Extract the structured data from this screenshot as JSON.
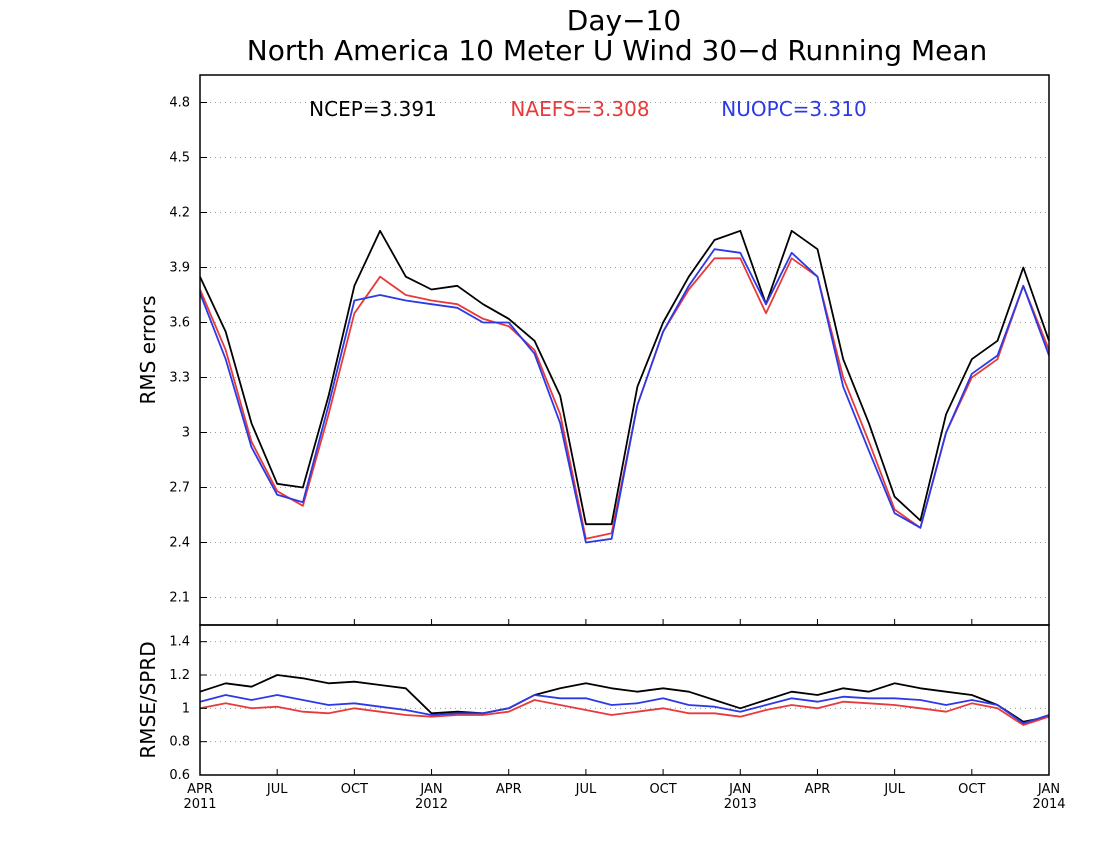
{
  "chart_data": [
    {
      "type": "line",
      "title": "Day−10",
      "subtitle": "North America 10 Meter U Wind 30−d Running Mean",
      "ylabel": "RMS errors",
      "xlabel": "",
      "ylim": [
        1.95,
        4.95
      ],
      "yticks": [
        "2.1",
        "2.4",
        "2.7",
        "3",
        "3.3",
        "3.6",
        "3.9",
        "4.2",
        "4.5",
        "4.8"
      ],
      "ytick_values": [
        2.1,
        2.4,
        2.7,
        3.0,
        3.3,
        3.6,
        3.9,
        4.2,
        4.5,
        4.8
      ],
      "grid": true,
      "legend_placement": "top",
      "x": [
        "2011-04",
        "2011-05",
        "2011-06",
        "2011-07",
        "2011-08",
        "2011-09",
        "2011-10",
        "2011-11",
        "2011-12",
        "2012-01",
        "2012-02",
        "2012-03",
        "2012-04",
        "2012-05",
        "2012-06",
        "2012-07",
        "2012-08",
        "2012-09",
        "2012-10",
        "2012-11",
        "2012-12",
        "2013-01",
        "2013-02",
        "2013-03",
        "2013-04",
        "2013-05",
        "2013-06",
        "2013-07",
        "2013-08",
        "2013-09",
        "2013-10",
        "2013-11",
        "2013-12",
        "2014-01"
      ],
      "series": [
        {
          "name": "NCEP=3.391",
          "color": "#000000",
          "values": [
            3.85,
            3.55,
            3.05,
            2.72,
            2.7,
            3.2,
            3.8,
            4.1,
            3.85,
            3.78,
            3.8,
            3.7,
            3.62,
            3.5,
            3.2,
            2.5,
            2.5,
            3.25,
            3.6,
            3.85,
            4.05,
            4.1,
            3.7,
            4.1,
            4.0,
            3.4,
            3.05,
            2.65,
            2.52,
            3.1,
            3.4,
            3.5,
            3.9,
            3.5
          ]
        },
        {
          "name": "NAEFS=3.308",
          "color": "#e83a3a",
          "values": [
            3.78,
            3.45,
            2.95,
            2.68,
            2.6,
            3.1,
            3.65,
            3.85,
            3.75,
            3.72,
            3.7,
            3.62,
            3.58,
            3.45,
            3.1,
            2.42,
            2.45,
            3.15,
            3.55,
            3.78,
            3.95,
            3.95,
            3.65,
            3.95,
            3.85,
            3.3,
            2.95,
            2.58,
            2.48,
            3.0,
            3.3,
            3.4,
            3.8,
            3.45
          ]
        },
        {
          "name": "NUOPC=3.310",
          "color": "#2b3ae6",
          "values": [
            3.76,
            3.4,
            2.92,
            2.66,
            2.62,
            3.15,
            3.72,
            3.75,
            3.72,
            3.7,
            3.68,
            3.6,
            3.6,
            3.43,
            3.05,
            2.4,
            2.42,
            3.15,
            3.55,
            3.8,
            4.0,
            3.98,
            3.7,
            3.98,
            3.85,
            3.25,
            2.9,
            2.56,
            2.48,
            3.0,
            3.32,
            3.42,
            3.8,
            3.42
          ]
        }
      ]
    },
    {
      "type": "line",
      "ylabel": "RMSE/SPRD",
      "xlabel": "",
      "ylim": [
        0.6,
        1.5
      ],
      "yticks": [
        "0.6",
        "0.8",
        "1",
        "1.2",
        "1.4"
      ],
      "ytick_values": [
        0.6,
        0.8,
        1.0,
        1.2,
        1.4
      ],
      "grid": true,
      "x": [
        "2011-04",
        "2011-05",
        "2011-06",
        "2011-07",
        "2011-08",
        "2011-09",
        "2011-10",
        "2011-11",
        "2011-12",
        "2012-01",
        "2012-02",
        "2012-03",
        "2012-04",
        "2012-05",
        "2012-06",
        "2012-07",
        "2012-08",
        "2012-09",
        "2012-10",
        "2012-11",
        "2012-12",
        "2013-01",
        "2013-02",
        "2013-03",
        "2013-04",
        "2013-05",
        "2013-06",
        "2013-07",
        "2013-08",
        "2013-09",
        "2013-10",
        "2013-11",
        "2013-12",
        "2014-01"
      ],
      "series": [
        {
          "color": "#000000",
          "values": [
            1.1,
            1.15,
            1.13,
            1.2,
            1.18,
            1.15,
            1.16,
            1.14,
            1.12,
            0.97,
            0.98,
            0.97,
            1.0,
            1.08,
            1.12,
            1.15,
            1.12,
            1.1,
            1.12,
            1.1,
            1.05,
            1.0,
            1.05,
            1.1,
            1.08,
            1.12,
            1.1,
            1.15,
            1.12,
            1.1,
            1.08,
            1.02,
            0.92,
            0.95
          ]
        },
        {
          "color": "#e83a3a",
          "values": [
            1.0,
            1.03,
            1.0,
            1.01,
            0.98,
            0.97,
            1.0,
            0.98,
            0.96,
            0.95,
            0.96,
            0.96,
            0.98,
            1.05,
            1.02,
            0.99,
            0.96,
            0.98,
            1.0,
            0.97,
            0.97,
            0.95,
            0.99,
            1.02,
            1.0,
            1.04,
            1.03,
            1.02,
            1.0,
            0.98,
            1.03,
            1.0,
            0.9,
            0.95
          ]
        },
        {
          "color": "#2b3ae6",
          "values": [
            1.04,
            1.08,
            1.05,
            1.08,
            1.05,
            1.02,
            1.03,
            1.01,
            0.99,
            0.96,
            0.97,
            0.97,
            1.0,
            1.08,
            1.06,
            1.06,
            1.02,
            1.03,
            1.06,
            1.02,
            1.01,
            0.98,
            1.02,
            1.06,
            1.04,
            1.07,
            1.06,
            1.06,
            1.05,
            1.02,
            1.05,
            1.02,
            0.91,
            0.96
          ]
        }
      ]
    }
  ],
  "x_axis": {
    "tick_labels": [
      {
        "month": "APR",
        "year": "2011"
      },
      {
        "month": "JUL",
        "year": ""
      },
      {
        "month": "OCT",
        "year": ""
      },
      {
        "month": "JAN",
        "year": "2012"
      },
      {
        "month": "APR",
        "year": ""
      },
      {
        "month": "JUL",
        "year": ""
      },
      {
        "month": "OCT",
        "year": ""
      },
      {
        "month": "JAN",
        "year": "2013"
      },
      {
        "month": "APR",
        "year": ""
      },
      {
        "month": "JUL",
        "year": ""
      },
      {
        "month": "OCT",
        "year": ""
      },
      {
        "month": "JAN",
        "year": "2014"
      }
    ]
  }
}
